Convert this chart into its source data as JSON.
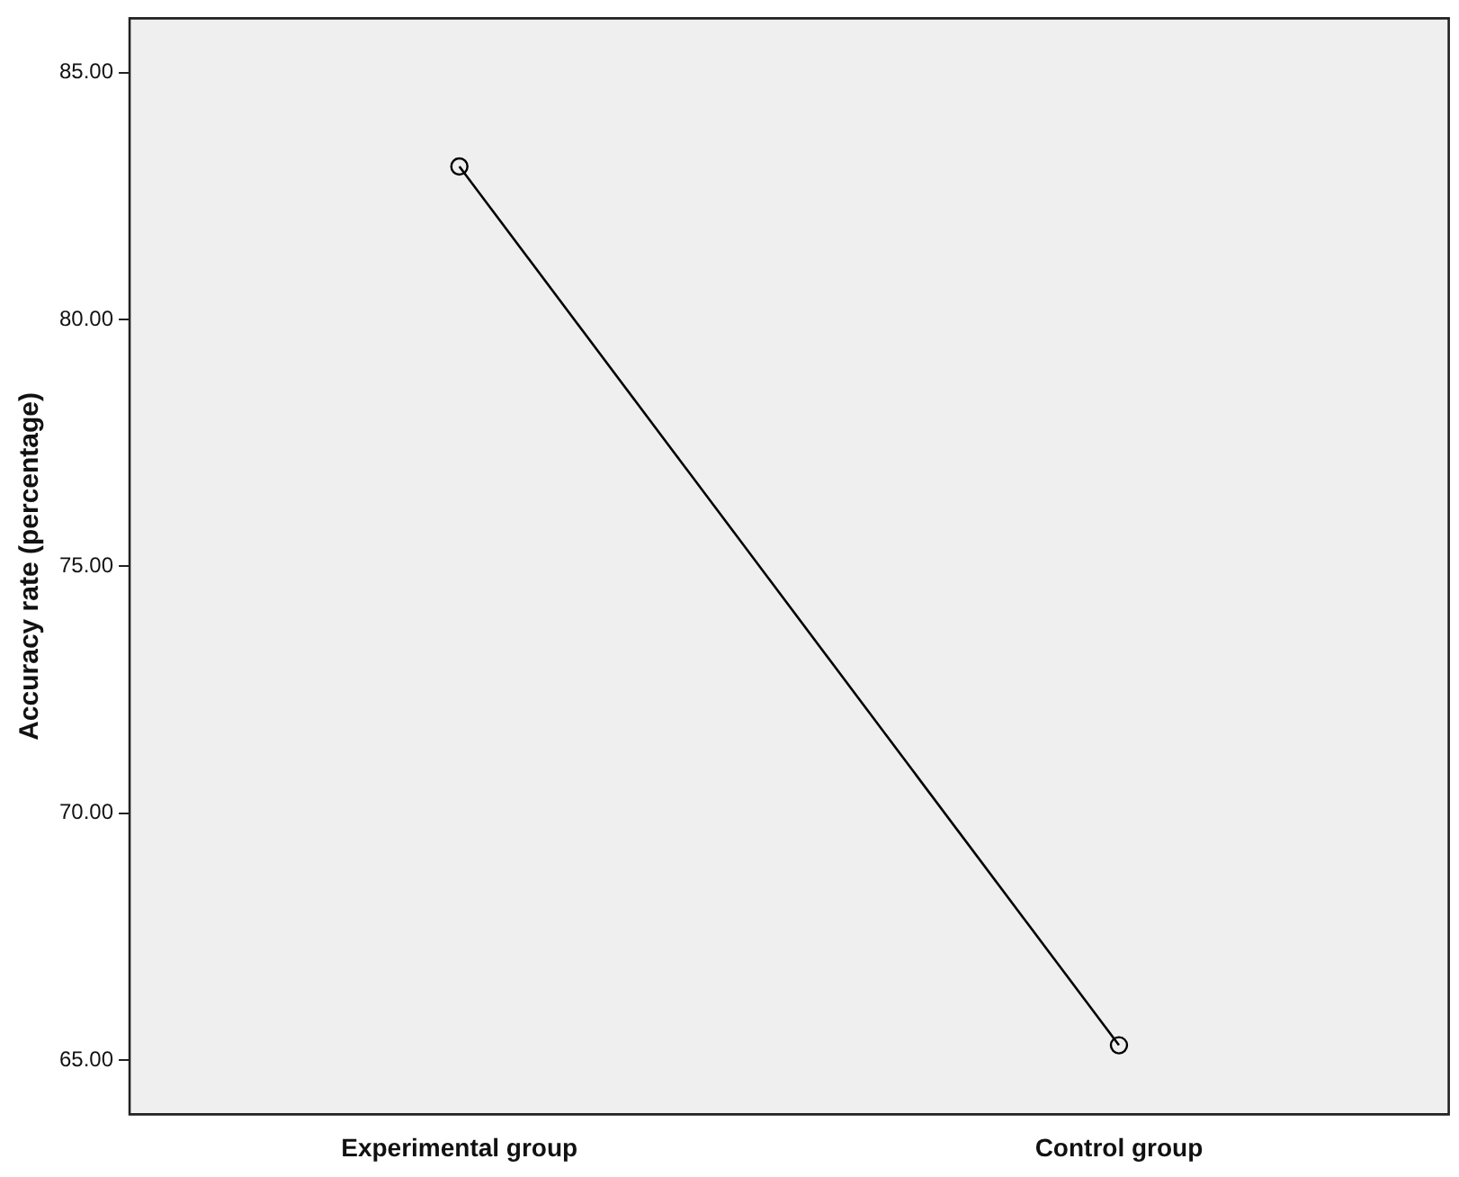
{
  "chart_data": {
    "type": "line",
    "ylabel": "Accuracy rate (percentage)",
    "categories": [
      "Experimental group",
      "Control group"
    ],
    "series": [
      {
        "color": "#000000",
        "values": [
          83.1,
          65.3
        ]
      }
    ],
    "ylim": [
      63.9,
      86.1
    ],
    "yticks": [
      {
        "value": 65,
        "label": "65.00"
      },
      {
        "value": 70,
        "label": "70.00"
      },
      {
        "value": 75,
        "label": "75.00"
      },
      {
        "value": 80,
        "label": "80.00"
      },
      {
        "value": 85,
        "label": "85.00"
      }
    ],
    "grid": false,
    "legend": false,
    "marker": "circle",
    "line_style": "solid"
  }
}
